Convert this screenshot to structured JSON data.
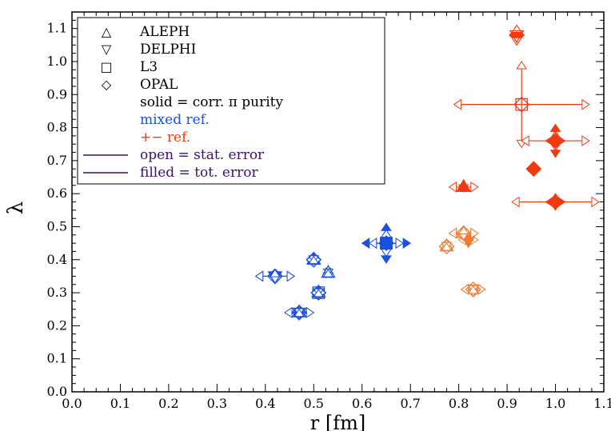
{
  "chart_data": {
    "type": "scatter",
    "xlabel": "r [fm]",
    "ylabel": "λ",
    "xlim": [
      0.0,
      1.1
    ],
    "ylim": [
      0.0,
      1.15
    ],
    "xticks": [
      "0.0",
      "0.1",
      "0.2",
      "0.3",
      "0.4",
      "0.5",
      "0.6",
      "0.7",
      "0.8",
      "0.9",
      "1.0",
      "1.1"
    ],
    "yticks": [
      "0.0",
      "0.1",
      "0.2",
      "0.3",
      "0.4",
      "0.5",
      "0.6",
      "0.7",
      "0.8",
      "0.9",
      "1.0",
      "1.1"
    ],
    "grid": false,
    "legend": {
      "placement": "top-left",
      "entries": [
        {
          "symbol": "△",
          "label": "ALEPH"
        },
        {
          "symbol": "▽",
          "label": "DELPHI"
        },
        {
          "symbol": "□",
          "label": "L3"
        },
        {
          "symbol": "◇",
          "label": "OPAL"
        },
        {
          "symbol": "",
          "label": "solid = corr. π purity"
        },
        {
          "symbol": "",
          "label": "mixed ref.",
          "color": "#1a4fe0"
        },
        {
          "symbol": "",
          "label": "+− ref.",
          "color": "#f03a10"
        },
        {
          "symbol": "line",
          "label": "open = stat. error",
          "color": "#3a1070"
        },
        {
          "symbol": "line",
          "label": "filled = tot. error",
          "color": "#3a1070"
        }
      ]
    },
    "colors": {
      "mixed": "#1a4fe0",
      "plusminus": "#f03a10",
      "orange": "#f07a30",
      "legend_text": "#3a1070"
    },
    "series": [
      {
        "marker": "triangle-up",
        "ref": "mixed",
        "filled": false,
        "x": 0.5,
        "y": 0.4,
        "ex": 0.015,
        "ey": 0.01
      },
      {
        "marker": "triangle-up",
        "ref": "mixed",
        "filled": true,
        "x": 0.5,
        "y": 0.4,
        "ex": 0.0,
        "ey": 0.0
      },
      {
        "marker": "triangle-up",
        "ref": "mixed",
        "filled": false,
        "x": 0.53,
        "y": 0.36,
        "ex": 0.01,
        "ey": 0.01
      },
      {
        "marker": "triangle-up",
        "ref": "mixed",
        "filled": false,
        "x": 0.47,
        "y": 0.24,
        "ex": 0.015,
        "ey": 0.01
      },
      {
        "marker": "triangle-up",
        "ref": "mixed",
        "filled": false,
        "x": 0.51,
        "y": 0.3,
        "ex": 0.01,
        "ey": 0.01
      },
      {
        "marker": "triangle-down",
        "ref": "mixed",
        "filled": false,
        "x": 0.42,
        "y": 0.35,
        "ex": 0.04,
        "ey": 0.02
      },
      {
        "marker": "triangle-down",
        "ref": "mixed",
        "filled": true,
        "x": 0.42,
        "y": 0.35,
        "ex": 0.0,
        "ey": 0.0
      },
      {
        "marker": "triangle-down",
        "ref": "mixed",
        "filled": false,
        "x": 0.47,
        "y": 0.24,
        "ex": 0.03,
        "ey": 0.01
      },
      {
        "marker": "square",
        "ref": "mixed",
        "filled": false,
        "x": 0.65,
        "y": 0.45,
        "ex": 0.035,
        "ey": 0.04
      },
      {
        "marker": "square",
        "ref": "mixed",
        "filled": true,
        "x": 0.65,
        "y": 0.45,
        "ex": 0.05,
        "ey": 0.06
      },
      {
        "marker": "square",
        "ref": "mixed",
        "filled": false,
        "x": 0.51,
        "y": 0.3,
        "ex": 0.015,
        "ey": 0.01
      },
      {
        "marker": "diamond",
        "ref": "mixed",
        "filled": false,
        "x": 0.42,
        "y": 0.35,
        "ex": 0.04,
        "ey": 0.02
      },
      {
        "marker": "diamond",
        "ref": "mixed",
        "filled": false,
        "x": 0.47,
        "y": 0.24,
        "ex": 0.03,
        "ey": 0.01
      },
      {
        "marker": "diamond",
        "ref": "mixed",
        "filled": false,
        "x": 0.51,
        "y": 0.3,
        "ex": 0.015,
        "ey": 0.01
      },
      {
        "marker": "diamond",
        "ref": "mixed",
        "filled": false,
        "x": 0.5,
        "y": 0.4,
        "ex": 0.015,
        "ey": 0.01
      },
      {
        "marker": "diamond",
        "ref": "mixed",
        "filled": false,
        "x": 0.65,
        "y": 0.45,
        "ex": 0.035,
        "ey": 0.04
      },
      {
        "marker": "triangle-up",
        "ref": "plusminus",
        "filled": false,
        "x": 0.81,
        "y": 0.62,
        "ex": 0.03,
        "ey": 0.015
      },
      {
        "marker": "triangle-up",
        "ref": "plusminus",
        "filled": true,
        "x": 0.81,
        "y": 0.62,
        "ex": 0.0,
        "ey": 0.0
      },
      {
        "marker": "triangle-up",
        "ref": "orange",
        "filled": false,
        "x": 0.81,
        "y": 0.48,
        "ex": 0.03,
        "ey": 0.02
      },
      {
        "marker": "triangle-up",
        "ref": "orange",
        "filled": false,
        "x": 0.775,
        "y": 0.44,
        "ex": 0.0,
        "ey": 0.01
      },
      {
        "marker": "triangle-down",
        "ref": "orange",
        "filled": false,
        "x": 0.82,
        "y": 0.46,
        "ex": 0.02,
        "ey": 0.02
      },
      {
        "marker": "triangle-down",
        "ref": "orange",
        "filled": true,
        "x": 0.82,
        "y": 0.46,
        "ex": 0.0,
        "ey": 0.0
      },
      {
        "marker": "triangle-down",
        "ref": "orange",
        "filled": false,
        "x": 0.83,
        "y": 0.31,
        "ex": 0.025,
        "ey": 0.01
      },
      {
        "marker": "diamond",
        "ref": "orange",
        "filled": false,
        "x": 0.83,
        "y": 0.31,
        "ex": 0.025,
        "ey": 0.01
      },
      {
        "marker": "diamond",
        "ref": "orange",
        "filled": false,
        "x": 0.81,
        "y": 0.48,
        "ex": 0.03,
        "ey": 0.02
      },
      {
        "marker": "diamond",
        "ref": "orange",
        "filled": false,
        "x": 0.775,
        "y": 0.44,
        "ex": 0.0,
        "ey": 0.01
      },
      {
        "marker": "diamond",
        "ref": "plusminus",
        "filled": false,
        "x": 0.92,
        "y": 1.08,
        "ex": 0.0,
        "ey": 0.03
      },
      {
        "marker": "diamond",
        "ref": "plusminus",
        "filled": true,
        "x": 0.92,
        "y": 1.08,
        "ex": 0.0,
        "ey": 0.0
      },
      {
        "marker": "triangle-down",
        "ref": "plusminus",
        "filled": false,
        "x": 0.92,
        "y": 1.08,
        "ex": 0.0,
        "ey": 0.03
      },
      {
        "marker": "diamond",
        "ref": "plusminus",
        "filled": false,
        "x": 0.93,
        "y": 0.87,
        "ex": 0.14,
        "ey": 0.13
      },
      {
        "marker": "square",
        "ref": "plusminus",
        "filled": false,
        "x": 0.93,
        "y": 0.87,
        "ex": 0.0,
        "ey": 0.0
      },
      {
        "marker": "diamond",
        "ref": "plusminus",
        "filled": false,
        "x": 1.0,
        "y": 0.76,
        "ex": 0.07,
        "ey": 0.03
      },
      {
        "marker": "diamond",
        "ref": "plusminus",
        "filled": true,
        "x": 1.0,
        "y": 0.76,
        "ex": 0.02,
        "ey": 0.05
      },
      {
        "marker": "diamond",
        "ref": "plusminus",
        "filled": true,
        "x": 0.955,
        "y": 0.675,
        "ex": 0.0,
        "ey": 0.0
      },
      {
        "marker": "diamond",
        "ref": "plusminus",
        "filled": false,
        "x": 1.0,
        "y": 0.575,
        "ex": 0.09,
        "ey": 0.02
      },
      {
        "marker": "diamond",
        "ref": "plusminus",
        "filled": true,
        "x": 1.0,
        "y": 0.575,
        "ex": 0.02,
        "ey": 0.025
      }
    ]
  }
}
